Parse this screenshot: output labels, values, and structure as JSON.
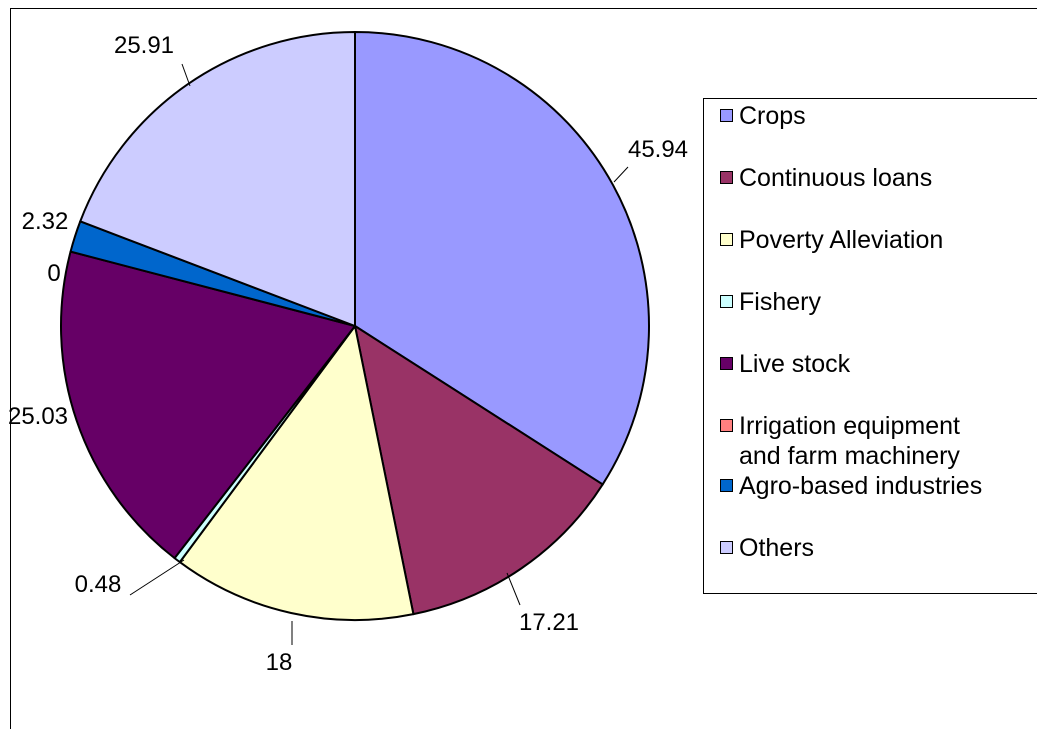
{
  "chart_data": {
    "type": "pie",
    "categories": [
      "Crops",
      "Continuous loans",
      "Poverty Alleviation",
      "Fishery",
      "Live stock",
      "Irrigation equipment\nand farm machinery",
      "Agro-based industries",
      "Others"
    ],
    "values": [
      45.94,
      17.21,
      18,
      0.48,
      25.03,
      0,
      2.32,
      25.91
    ],
    "data_labels": [
      "45.94",
      "17.21",
      "18",
      "0.48",
      "25.03",
      "0",
      "2.32",
      "25.91"
    ],
    "colors": [
      "#9999ff",
      "#993366",
      "#ffffcc",
      "#ccffff",
      "#660066",
      "#ff8080",
      "#0066cc",
      "#ccccff"
    ],
    "legend_position": "right",
    "start_angle": "12 o'clock",
    "direction": "clockwise"
  }
}
